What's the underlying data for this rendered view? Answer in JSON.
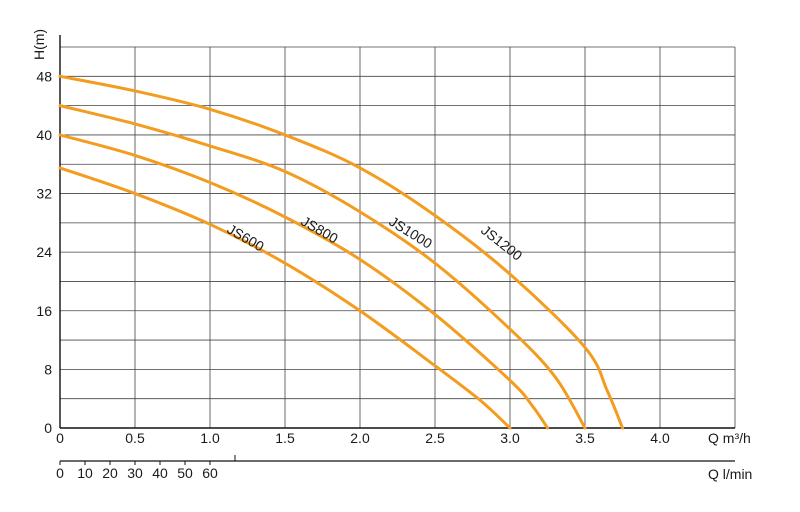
{
  "chart_data": {
    "type": "line",
    "title": "",
    "ylabel": "H(m)",
    "xlabel": "Q m³/h",
    "xlabel_secondary": "Q l/min",
    "xlim": [
      0,
      4.5
    ],
    "ylim": [
      0,
      52
    ],
    "x_ticks": [
      "0",
      "0.5",
      "1.0",
      "1.5",
      "2.0",
      "2.5",
      "3.0",
      "3.5",
      "4.0"
    ],
    "x_tick_values": [
      0,
      0.5,
      1.0,
      1.5,
      2.0,
      2.5,
      3.0,
      3.5,
      4.0
    ],
    "x2_ticks": [
      "0",
      "10",
      "20",
      "30",
      "40",
      "50",
      "60"
    ],
    "x2_tick_values": [
      0,
      10,
      20,
      30,
      40,
      50,
      60
    ],
    "y_ticks": [
      "0",
      "8",
      "16",
      "24",
      "32",
      "40",
      "48"
    ],
    "y_tick_values": [
      0,
      8,
      16,
      24,
      32,
      40,
      48
    ],
    "grid": true,
    "line_color": "#f39c1f",
    "series": [
      {
        "name": "JS600",
        "x": [
          0,
          0.5,
          1.0,
          1.5,
          2.0,
          2.5,
          2.8,
          3.0
        ],
        "y": [
          35.5,
          32,
          27.8,
          22.5,
          16,
          8.5,
          3.8,
          0
        ]
      },
      {
        "name": "JS800",
        "x": [
          0,
          0.5,
          1.0,
          1.5,
          2.0,
          2.5,
          3.0,
          3.15,
          3.25
        ],
        "y": [
          40,
          37.2,
          33.5,
          28.8,
          23,
          15.5,
          6.5,
          3,
          0
        ]
      },
      {
        "name": "JS1000",
        "x": [
          0,
          0.5,
          1.0,
          1.5,
          2.0,
          2.5,
          3.0,
          3.3,
          3.5
        ],
        "y": [
          44,
          41.5,
          38.5,
          35,
          29.5,
          22.5,
          13.5,
          7,
          0
        ]
      },
      {
        "name": "JS1200",
        "x": [
          0,
          0.5,
          1.0,
          1.5,
          2.0,
          2.5,
          3.0,
          3.5,
          3.65,
          3.75
        ],
        "y": [
          48,
          46,
          43.5,
          40,
          35.5,
          29,
          21,
          11,
          5,
          0
        ]
      }
    ]
  }
}
